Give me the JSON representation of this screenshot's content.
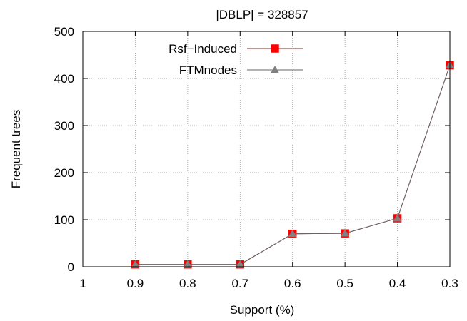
{
  "chart_data": {
    "type": "line",
    "title": "|DBLP| = 328857",
    "xlabel": "Support (%)",
    "ylabel": "Frequent trees",
    "x_ticks": [
      "1",
      "0.9",
      "0.8",
      "0.7",
      "0.6",
      "0.5",
      "0.4",
      "0.3"
    ],
    "x_values": [
      1,
      0.9,
      0.8,
      0.7,
      0.6,
      0.5,
      0.4,
      0.3
    ],
    "xlim": [
      1,
      0.3
    ],
    "y_ticks": [
      "0",
      "100",
      "200",
      "300",
      "400",
      "500"
    ],
    "ylim": [
      0,
      500
    ],
    "grid": true,
    "legend_position": "top-left",
    "series": [
      {
        "name": "Rsf−Induced",
        "marker": "square",
        "color": "#8b2323",
        "marker_color": "#ff0000",
        "x": [
          0.9,
          0.8,
          0.7,
          0.6,
          0.5,
          0.4,
          0.3
        ],
        "y": [
          5,
          5,
          5,
          70,
          71,
          103,
          428
        ]
      },
      {
        "name": "FTMnodes",
        "marker": "triangle",
        "color": "#666666",
        "marker_color": "#808080",
        "x": [
          0.9,
          0.8,
          0.7,
          0.6,
          0.5,
          0.4,
          0.3
        ],
        "y": [
          5,
          5,
          5,
          70,
          71,
          103,
          428
        ]
      }
    ]
  }
}
